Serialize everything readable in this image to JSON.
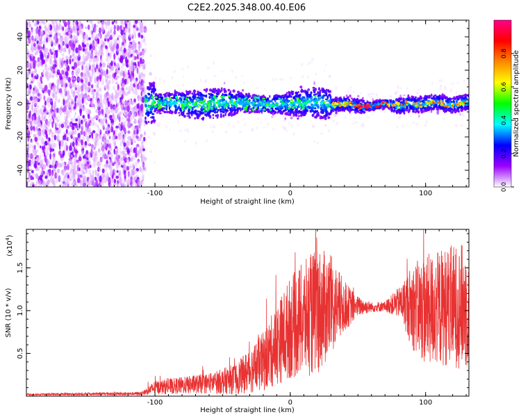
{
  "title": "C2E2.2025.348.00.40.E06",
  "chart_data": [
    {
      "type": "heatmap",
      "name": "spectrogram",
      "xlabel": "Height of straight line (km)",
      "ylabel": "Frequency (Hz)",
      "xlim": [
        -195,
        132
      ],
      "ylim": [
        -50,
        50
      ],
      "xticks": [
        -100,
        0,
        100
      ],
      "xtick_labels": [
        "-100",
        "0",
        "100"
      ],
      "yticks": [
        -40,
        -20,
        0,
        20,
        40
      ],
      "ytick_labels": [
        "-40",
        "-20",
        "0",
        "20",
        "40"
      ],
      "noise_region": [
        -195,
        -107
      ],
      "signal_start": -107,
      "narrowband_region": [
        30,
        132
      ],
      "colorbar": {
        "label": "Normalized spectral amplitude",
        "range": [
          0,
          1
        ],
        "ticks": [
          0,
          0.2,
          0.4,
          0.6,
          0.8
        ],
        "tick_labels": [
          "0.0",
          "0.2",
          "0.4",
          "0.6",
          "0.8"
        ],
        "colors": [
          "#ffffff",
          "#9b00ff",
          "#0000ff",
          "#00ffff",
          "#00ff00",
          "#ffff00",
          "#ff8800",
          "#ff0000",
          "#ff0088"
        ]
      }
    },
    {
      "type": "line",
      "name": "snr",
      "xlabel": "Height of straight line (km)",
      "ylabel": "SNR (10 * v/v)",
      "scale_label": "(x10",
      "scale_exponent": "4",
      "scale_suffix": ")",
      "xlim": [
        -195,
        132
      ],
      "ylim": [
        0,
        1.95
      ],
      "xticks": [
        -100,
        0,
        100
      ],
      "xtick_labels": [
        "-100",
        "0",
        "100"
      ],
      "yticks": [
        0.5,
        1.0,
        1.5
      ],
      "ytick_labels": [
        "0.5",
        "1.0",
        "1.5"
      ],
      "color": "#e83232",
      "envelope": [
        {
          "x": -195,
          "mean": 0.02,
          "amp": 0.01
        },
        {
          "x": -110,
          "mean": 0.03,
          "amp": 0.02
        },
        {
          "x": -100,
          "mean": 0.1,
          "amp": 0.08
        },
        {
          "x": -60,
          "mean": 0.15,
          "amp": 0.12
        },
        {
          "x": -40,
          "mean": 0.2,
          "amp": 0.18
        },
        {
          "x": -20,
          "mean": 0.4,
          "amp": 0.35
        },
        {
          "x": 0,
          "mean": 0.8,
          "amp": 0.6
        },
        {
          "x": 20,
          "mean": 1.0,
          "amp": 0.75
        },
        {
          "x": 30,
          "mean": 1.05,
          "amp": 0.6
        },
        {
          "x": 40,
          "mean": 1.05,
          "amp": 0.3
        },
        {
          "x": 50,
          "mean": 1.05,
          "amp": 0.12
        },
        {
          "x": 60,
          "mean": 1.04,
          "amp": 0.06
        },
        {
          "x": 70,
          "mean": 1.05,
          "amp": 0.06
        },
        {
          "x": 82,
          "mean": 1.1,
          "amp": 0.2
        },
        {
          "x": 90,
          "mean": 1.05,
          "amp": 0.5
        },
        {
          "x": 100,
          "mean": 1.0,
          "amp": 0.65
        },
        {
          "x": 115,
          "mean": 1.05,
          "amp": 0.7
        },
        {
          "x": 132,
          "mean": 1.05,
          "amp": 0.75
        }
      ]
    }
  ]
}
